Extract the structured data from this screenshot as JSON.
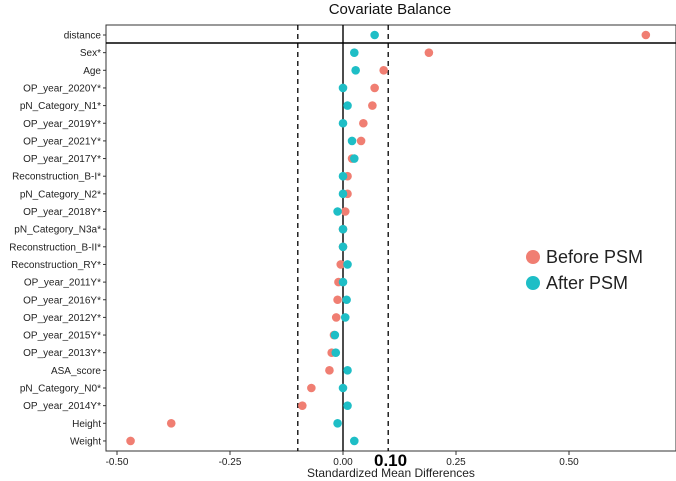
{
  "chart_data": {
    "type": "scatter",
    "title": "Covariate Balance",
    "xlabel": "Standardized Mean Differences",
    "ylabel": "",
    "xlim": [
      -0.52,
      0.72
    ],
    "xticks": [
      -0.5,
      -0.25,
      0.0,
      0.25,
      0.5
    ],
    "xtick_labels": [
      "-0.50",
      "-0.25",
      "0.00",
      "0.25",
      "0.50"
    ],
    "threshold_lines": [
      -0.1,
      0.1
    ],
    "zero_line": 0.0,
    "annotation": "0.10",
    "colors": {
      "before": "#F07E72",
      "after": "#1EBEC6"
    },
    "legend": {
      "position": "right",
      "entries": [
        "Before PSM",
        "After PSM"
      ]
    },
    "categories": [
      "distance",
      "Sex*",
      "Age",
      "OP_year_2020Y*",
      "pN_Category_N1*",
      "OP_year_2019Y*",
      "OP_year_2021Y*",
      "OP_year_2017Y*",
      "Reconstruction_B-I*",
      "pN_Category_N2*",
      "OP_year_2018Y*",
      "pN_Category_N3a*",
      "Reconstruction_B-II*",
      "Reconstruction_RY*",
      "OP_year_2011Y*",
      "OP_year_2016Y*",
      "OP_year_2012Y*",
      "OP_year_2015Y*",
      "OP_year_2013Y*",
      "ASA_score",
      "pN_Category_N0*",
      "OP_year_2014Y*",
      "Height",
      "Weight"
    ],
    "series": [
      {
        "name": "Before PSM",
        "values": [
          0.67,
          0.19,
          0.09,
          0.07,
          0.065,
          0.045,
          0.04,
          0.02,
          0.01,
          0.01,
          0.005,
          0.0,
          0.0,
          -0.005,
          -0.01,
          -0.012,
          -0.015,
          -0.02,
          -0.025,
          -0.03,
          -0.07,
          -0.09,
          -0.38,
          -0.47
        ]
      },
      {
        "name": "After PSM",
        "values": [
          0.07,
          0.025,
          0.028,
          0.0,
          0.01,
          0.0,
          0.02,
          0.025,
          0.0,
          0.0,
          -0.012,
          0.0,
          0.0,
          0.01,
          0.0,
          0.008,
          0.005,
          -0.018,
          -0.016,
          0.01,
          0.0,
          0.01,
          -0.012,
          0.025
        ]
      }
    ]
  }
}
